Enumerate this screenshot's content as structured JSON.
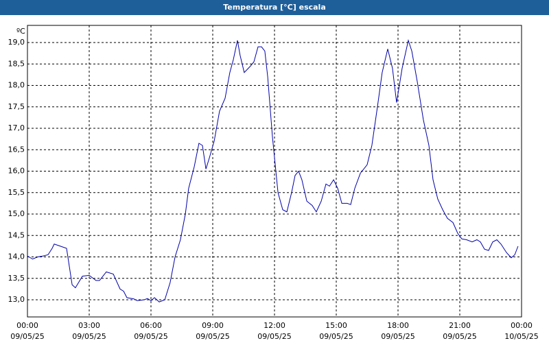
{
  "chart_data": {
    "type": "line",
    "title": "Temperatura [°C] escala",
    "ylabel": "ºC",
    "xlim": [
      0,
      24
    ],
    "xticks": [
      {
        "value": 0,
        "label": "00:00",
        "date": "09/05/25"
      },
      {
        "value": 3,
        "label": "03:00",
        "date": "09/05/25"
      },
      {
        "value": 6,
        "label": "06:00",
        "date": "09/05/25"
      },
      {
        "value": 9,
        "label": "09:00",
        "date": "09/05/25"
      },
      {
        "value": 12,
        "label": "12:00",
        "date": "09/05/25"
      },
      {
        "value": 15,
        "label": "15:00",
        "date": "09/05/25"
      },
      {
        "value": 18,
        "label": "18:00",
        "date": "09/05/25"
      },
      {
        "value": 21,
        "label": "21:00",
        "date": "09/05/25"
      },
      {
        "value": 24,
        "label": "00:00",
        "date": "10/05/25"
      }
    ],
    "ylim": [
      12.6,
      19.4
    ],
    "yticks": [
      {
        "value": 13,
        "label": "13,0"
      },
      {
        "value": 13.5,
        "label": "13,5"
      },
      {
        "value": 14,
        "label": "14,0"
      },
      {
        "value": 14.5,
        "label": "14,5"
      },
      {
        "value": 15,
        "label": "15,0"
      },
      {
        "value": 15.5,
        "label": "15,5"
      },
      {
        "value": 16,
        "label": "16,0"
      },
      {
        "value": 16.5,
        "label": "16,5"
      },
      {
        "value": 17,
        "label": "17,0"
      },
      {
        "value": 17.5,
        "label": "17,5"
      },
      {
        "value": 18,
        "label": "18,0"
      },
      {
        "value": 18.5,
        "label": "18,5"
      },
      {
        "value": 19,
        "label": "19,0"
      }
    ],
    "grid": true,
    "x": [
      0,
      0.25,
      0.5,
      0.75,
      1,
      1.2,
      1.3,
      1.6,
      1.9,
      2.17,
      2.33,
      2.67,
      3,
      3.33,
      3.5,
      3.83,
      4.17,
      4.5,
      4.67,
      4.83,
      5.17,
      5.33,
      5.67,
      5.83,
      6,
      6.17,
      6.4,
      6.67,
      6.93,
      7.17,
      7.43,
      7.67,
      7.83,
      8.1,
      8.33,
      8.5,
      8.67,
      8.83,
      9.07,
      9.33,
      9.6,
      9.83,
      10,
      10.2,
      10.33,
      10.53,
      10.83,
      11,
      11.2,
      11.37,
      11.53,
      11.67,
      11.9,
      12.17,
      12.4,
      12.6,
      12.83,
      13,
      13.17,
      13.33,
      13.57,
      13.83,
      14.03,
      14.27,
      14.5,
      14.67,
      14.87,
      15.07,
      15.27,
      15.53,
      15.7,
      15.9,
      16.17,
      16.5,
      16.73,
      17,
      17.23,
      17.5,
      17.73,
      17.93,
      18.2,
      18.5,
      18.67,
      18.93,
      19.23,
      19.5,
      19.7,
      19.93,
      20.17,
      20.4,
      20.67,
      20.9,
      21.1,
      21.33,
      21.6,
      21.83,
      22,
      22.2,
      22.4,
      22.6,
      22.8,
      23,
      23.27,
      23.5,
      23.67,
      23.83
    ],
    "series": [
      {
        "name": "Temperatura",
        "color": "#0000a8",
        "values": [
          14.02,
          13.95,
          14.0,
          14.02,
          14.05,
          14.2,
          14.3,
          14.25,
          14.2,
          13.35,
          13.28,
          13.55,
          13.57,
          13.45,
          13.45,
          13.65,
          13.6,
          13.25,
          13.2,
          13.05,
          13.02,
          12.98,
          13.0,
          13.03,
          12.98,
          13.05,
          12.95,
          13.0,
          13.4,
          14.0,
          14.4,
          15.0,
          15.6,
          16.1,
          16.65,
          16.6,
          16.05,
          16.3,
          16.7,
          17.4,
          17.7,
          18.3,
          18.6,
          19.05,
          18.7,
          18.3,
          18.45,
          18.55,
          18.9,
          18.9,
          18.8,
          18.2,
          16.8,
          15.5,
          15.1,
          15.05,
          15.5,
          15.9,
          16.0,
          15.8,
          15.3,
          15.2,
          15.05,
          15.3,
          15.7,
          15.65,
          15.8,
          15.6,
          15.25,
          15.25,
          15.22,
          15.6,
          15.95,
          16.15,
          16.6,
          17.5,
          18.3,
          18.85,
          18.4,
          17.6,
          18.4,
          19.05,
          18.8,
          18.1,
          17.2,
          16.6,
          15.8,
          15.35,
          15.1,
          14.9,
          14.8,
          14.55,
          14.42,
          14.4,
          14.35,
          14.4,
          14.35,
          14.18,
          14.15,
          14.35,
          14.4,
          14.3,
          14.1,
          13.98,
          14.05,
          14.25
        ]
      }
    ]
  }
}
